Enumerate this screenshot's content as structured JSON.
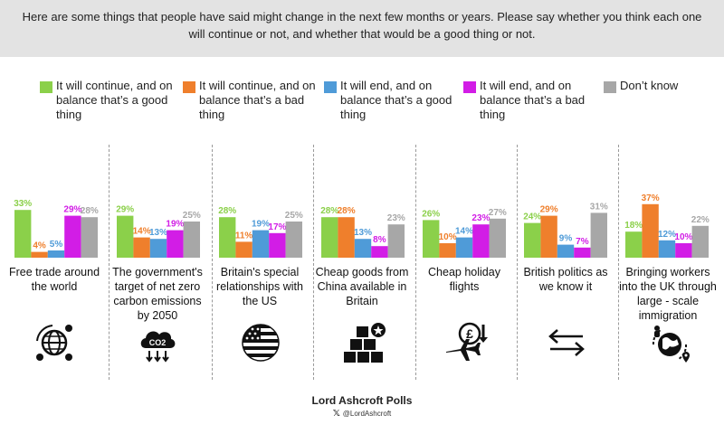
{
  "header": {
    "question": "Here are some things that people have said might change in the next few months or years. Please say whether you think each one will continue or not, and whether that would be a good thing or not."
  },
  "chart_data": {
    "type": "bar",
    "unit": "%",
    "series": [
      {
        "name": "It will continue, and on balance that’s a good thing",
        "color": "#8bd04a",
        "values": [
          33,
          29,
          28,
          28,
          26,
          24,
          18
        ]
      },
      {
        "name": "It will continue, and on balance that’s a bad thing",
        "color": "#ef7f2c",
        "values": [
          4,
          14,
          11,
          28,
          10,
          29,
          37
        ]
      },
      {
        "name": "It will end, and on balance that’s a good thing",
        "color": "#4f9bd8",
        "values": [
          5,
          13,
          19,
          13,
          14,
          9,
          12
        ]
      },
      {
        "name": "It will end, and on balance that’s a bad thing",
        "color": "#d21de6",
        "values": [
          29,
          19,
          17,
          8,
          23,
          7,
          10
        ]
      },
      {
        "name": "Don’t know",
        "color": "#a7a7a7",
        "values": [
          28,
          25,
          25,
          23,
          27,
          31,
          22
        ]
      }
    ],
    "categories": [
      "Free trade around the world",
      "The government's target of net zero carbon emissions by 2050",
      "Britain's special relationships with the US",
      "Cheap goods from China available in Britain",
      "Cheap holiday flights",
      "British politics as we know it",
      "Bringing workers into the UK through large - scale immigration"
    ],
    "ylim": [
      0,
      37
    ]
  },
  "icons": [
    "globe-network-icon",
    "co2-cloud-icon",
    "us-flag-icon",
    "china-goods-boxes-icon",
    "pound-flight-icon",
    "swap-arrows-icon",
    "immigration-globe-icon"
  ],
  "footer": {
    "title": "Lord Ashcroft Polls",
    "handle": "@LordAshcroft",
    "x_logo": "𝕏"
  }
}
